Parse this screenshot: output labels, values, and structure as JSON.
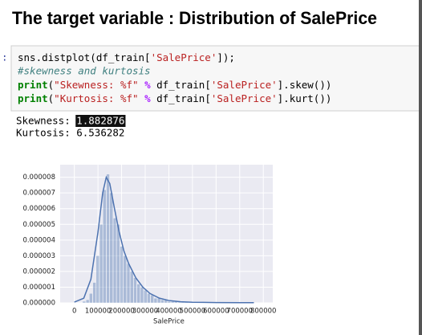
{
  "heading": "The target variable : Distribution of SalePrice",
  "cell": {
    "prompt": ":",
    "code": [
      "sns.distplot(df_train['SalePrice']);",
      "#skewness and kurtosis",
      "print(\"Skewness: %f\" % df_train['SalePrice'].skew())",
      "print(\"Kurtosis: %f\" % df_train['SalePrice'].kurt())"
    ],
    "output": [
      {
        "label": "Skewness:",
        "value": 1.882876
      },
      {
        "label": "Kurtosis:",
        "value": 6.536282
      }
    ]
  },
  "chart_data": {
    "type": "histogram",
    "xlabel": "SalePrice",
    "color": "#4c72b0",
    "grid": true,
    "bins": [
      34900,
      49302,
      63704,
      78106,
      92508,
      106910,
      121312,
      135714,
      150116,
      164518,
      178920,
      193322,
      207724,
      222126,
      236528,
      250930,
      265332,
      279734,
      294136,
      308538,
      322940,
      337342,
      351744,
      366146,
      380548,
      394950,
      409352,
      423754,
      438156,
      452558,
      466960,
      481362,
      495764,
      510166,
      524568,
      538970,
      553372,
      567774,
      582176,
      596578,
      610980,
      625382,
      639784,
      654186,
      668588,
      682990,
      697392,
      711794,
      726196,
      740598,
      755000
    ],
    "values": [
      1e-07,
      2e-07,
      6e-07,
      1.3e-06,
      3e-06,
      5e-06,
      7.2e-06,
      8.2e-06,
      7e-06,
      5.4e-06,
      5e-06,
      3.6e-06,
      3e-06,
      2.5e-06,
      2e-06,
      1.6e-06,
      1.2e-06,
      1e-06,
      8e-07,
      6e-07,
      5e-07,
      3e-07,
      3e-07,
      2e-07,
      2e-07,
      1e-07,
      1e-07,
      1e-07,
      5e-08,
      5e-08,
      5e-08,
      0,
      5e-08,
      0,
      5e-08,
      0,
      0,
      0,
      5e-08,
      0,
      0,
      0,
      0,
      0,
      0,
      0,
      0,
      5e-08,
      0,
      5e-08
    ],
    "kde": {
      "x": [
        0,
        40000,
        70000,
        100000,
        120000,
        135000,
        150000,
        170000,
        190000,
        210000,
        230000,
        260000,
        290000,
        320000,
        360000,
        400000,
        450000,
        500000,
        600000,
        700000,
        760000
      ],
      "values": [
        5e-08,
        3e-07,
        1.5e-06,
        4.5e-06,
        7e-06,
        8e-06,
        7.6e-06,
        6e-06,
        4.5e-06,
        3.3e-06,
        2.5e-06,
        1.6e-06,
        1e-06,
        6e-07,
        3e-07,
        1.5e-07,
        7e-08,
        4e-08,
        2e-08,
        1e-08,
        1e-08
      ]
    },
    "xlim": [
      -60000,
      840000
    ],
    "xticks": [
      0,
      100000,
      200000,
      300000,
      400000,
      500000,
      600000,
      700000,
      800000
    ],
    "ylim": [
      0,
      8.8e-06
    ],
    "yticks": [
      {
        "value": 0,
        "label": "0.000000"
      },
      {
        "value": 1e-06,
        "label": "0.000001"
      },
      {
        "value": 2e-06,
        "label": "0.000002"
      },
      {
        "value": 3e-06,
        "label": "0.000003"
      },
      {
        "value": 4e-06,
        "label": "0.000004"
      },
      {
        "value": 5e-06,
        "label": "0.000005"
      },
      {
        "value": 6e-06,
        "label": "0.000006"
      },
      {
        "value": 7e-06,
        "label": "0.000007"
      },
      {
        "value": 8e-06,
        "label": "0.000008"
      }
    ]
  }
}
